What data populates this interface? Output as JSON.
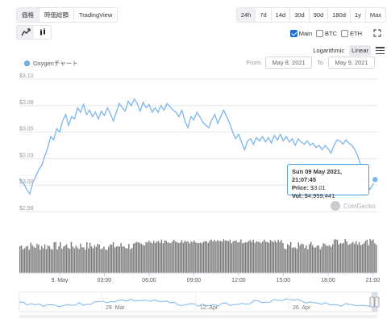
{
  "tabs": [
    {
      "label": "価格",
      "active": true
    },
    {
      "label": "時価総額",
      "active": false
    },
    {
      "label": "TradingView",
      "active": false
    }
  ],
  "ranges": [
    {
      "label": "24h",
      "active": true
    },
    {
      "label": "7d",
      "active": false
    },
    {
      "label": "14d",
      "active": false
    },
    {
      "label": "30d",
      "active": false
    },
    {
      "label": "90d",
      "active": false
    },
    {
      "label": "180d",
      "active": false
    },
    {
      "label": "1y",
      "active": false
    },
    {
      "label": "Max",
      "active": false
    }
  ],
  "chart_types": [
    {
      "icon": "line-chart-icon",
      "active": true
    },
    {
      "icon": "candlestick-icon",
      "active": false
    }
  ],
  "compare": [
    {
      "label": "Main",
      "checked": true
    },
    {
      "label": "BTC",
      "checked": false
    },
    {
      "label": "ETH",
      "checked": false
    }
  ],
  "scale": {
    "log_label": "Logarithmic",
    "linear_label": "Linear",
    "active": "linear"
  },
  "series_label": "Oxygenチャート",
  "date_range": {
    "from_label": "From",
    "from": "May 8, 2021",
    "to_label": "To",
    "to": "May 9, 2021"
  },
  "tooltip": {
    "date": "Sun 09 May 2021, 21:07:45",
    "price_label": "Price:",
    "price": "$3.01",
    "vol_label": "Vol:",
    "vol": "$4,959,441"
  },
  "watermark": "CoinGecko",
  "colors": {
    "line": "#7cb5ec",
    "volume": "#7b7b7b",
    "navigator": "#7cb5ec",
    "accent": "#1e6fd9"
  },
  "chart_data": {
    "type": "line",
    "title": "",
    "xlabel": "",
    "ylabel": "",
    "ylim": [
      2.98,
      3.1
    ],
    "y_ticks": [
      "$3.10",
      "$3.08",
      "$3.05",
      "$3.03",
      "$3.00",
      "$2.98"
    ],
    "x_ticks": [
      "9. May",
      "03:00",
      "06:00",
      "09:00",
      "12:00",
      "15:00",
      "18:00",
      "21:00"
    ],
    "xlim_hours": [
      -2.7,
      21.3
    ],
    "tick_hours": [
      0,
      3,
      6,
      9,
      12,
      15,
      18,
      21
    ],
    "x_unit": "hours since 9 May 2021 00:00",
    "price": [
      [
        -2.7,
        3.01
      ],
      [
        -2.4,
        3.005
      ],
      [
        -2.2,
        3.0
      ],
      [
        -2.0,
        2.996
      ],
      [
        -1.8,
        3.006
      ],
      [
        -1.6,
        3.012
      ],
      [
        -1.4,
        3.018
      ],
      [
        -1.2,
        3.022
      ],
      [
        -1.0,
        3.03
      ],
      [
        -0.8,
        3.038
      ],
      [
        -0.6,
        3.048
      ],
      [
        -0.4,
        3.045
      ],
      [
        -0.2,
        3.055
      ],
      [
        0.0,
        3.052
      ],
      [
        0.2,
        3.062
      ],
      [
        0.4,
        3.068
      ],
      [
        0.6,
        3.058
      ],
      [
        0.8,
        3.066
      ],
      [
        1.0,
        3.064
      ],
      [
        1.2,
        3.074
      ],
      [
        1.4,
        3.07
      ],
      [
        1.6,
        3.077
      ],
      [
        1.8,
        3.068
      ],
      [
        2.0,
        3.072
      ],
      [
        2.2,
        3.066
      ],
      [
        2.4,
        3.07
      ],
      [
        2.6,
        3.064
      ],
      [
        2.8,
        3.071
      ],
      [
        3.0,
        3.067
      ],
      [
        3.2,
        3.074
      ],
      [
        3.4,
        3.069
      ],
      [
        3.6,
        3.062
      ],
      [
        3.8,
        3.07
      ],
      [
        4.0,
        3.078
      ],
      [
        4.2,
        3.074
      ],
      [
        4.4,
        3.071
      ],
      [
        4.6,
        3.08
      ],
      [
        4.8,
        3.076
      ],
      [
        5.0,
        3.082
      ],
      [
        5.2,
        3.078
      ],
      [
        5.4,
        3.071
      ],
      [
        5.6,
        3.079
      ],
      [
        5.8,
        3.074
      ],
      [
        6.0,
        3.077
      ],
      [
        6.2,
        3.07
      ],
      [
        6.4,
        3.074
      ],
      [
        6.6,
        3.07
      ],
      [
        6.8,
        3.076
      ],
      [
        7.0,
        3.072
      ],
      [
        7.2,
        3.078
      ],
      [
        7.4,
        3.075
      ],
      [
        7.6,
        3.072
      ],
      [
        7.8,
        3.07
      ],
      [
        8.0,
        3.066
      ],
      [
        8.2,
        3.072
      ],
      [
        8.4,
        3.062
      ],
      [
        8.6,
        3.056
      ],
      [
        8.8,
        3.066
      ],
      [
        9.0,
        3.063
      ],
      [
        9.2,
        3.07
      ],
      [
        9.4,
        3.066
      ],
      [
        9.6,
        3.061
      ],
      [
        9.8,
        3.058
      ],
      [
        10.0,
        3.056
      ],
      [
        10.2,
        3.063
      ],
      [
        10.4,
        3.068
      ],
      [
        10.6,
        3.06
      ],
      [
        10.8,
        3.066
      ],
      [
        11.0,
        3.072
      ],
      [
        11.2,
        3.066
      ],
      [
        11.4,
        3.06
      ],
      [
        11.6,
        3.052
      ],
      [
        11.8,
        3.046
      ],
      [
        12.0,
        3.05
      ],
      [
        12.2,
        3.043
      ],
      [
        12.4,
        3.036
      ],
      [
        12.6,
        3.044
      ],
      [
        12.8,
        3.046
      ],
      [
        13.0,
        3.041
      ],
      [
        13.2,
        3.047
      ],
      [
        13.4,
        3.044
      ],
      [
        13.6,
        3.048
      ],
      [
        13.8,
        3.043
      ],
      [
        14.0,
        3.047
      ],
      [
        14.2,
        3.042
      ],
      [
        14.4,
        3.049
      ],
      [
        14.6,
        3.045
      ],
      [
        14.8,
        3.05
      ],
      [
        15.0,
        3.044
      ],
      [
        15.2,
        3.048
      ],
      [
        15.4,
        3.043
      ],
      [
        15.6,
        3.046
      ],
      [
        15.8,
        3.04
      ],
      [
        16.0,
        3.046
      ],
      [
        16.2,
        3.043
      ],
      [
        16.4,
        3.041
      ],
      [
        16.6,
        3.044
      ],
      [
        16.8,
        3.04
      ],
      [
        17.0,
        3.042
      ],
      [
        17.2,
        3.038
      ],
      [
        17.4,
        3.04
      ],
      [
        17.6,
        3.036
      ],
      [
        17.8,
        3.04
      ],
      [
        18.0,
        3.037
      ],
      [
        18.2,
        3.033
      ],
      [
        18.4,
        3.04
      ],
      [
        18.6,
        3.045
      ],
      [
        18.8,
        3.044
      ],
      [
        19.0,
        3.041
      ],
      [
        19.2,
        3.045
      ],
      [
        19.4,
        3.042
      ],
      [
        19.6,
        3.04
      ],
      [
        19.8,
        3.036
      ],
      [
        20.0,
        3.03
      ],
      [
        20.2,
        3.022
      ],
      [
        20.4,
        3.014
      ],
      [
        20.6,
        3.006
      ],
      [
        20.8,
        3.0
      ],
      [
        21.0,
        3.004
      ],
      [
        21.15,
        3.009
      ]
    ],
    "volume_bars": 230,
    "navigator_ticks": [
      "29. Mar",
      "12. Apr",
      "26. Apr"
    ]
  }
}
